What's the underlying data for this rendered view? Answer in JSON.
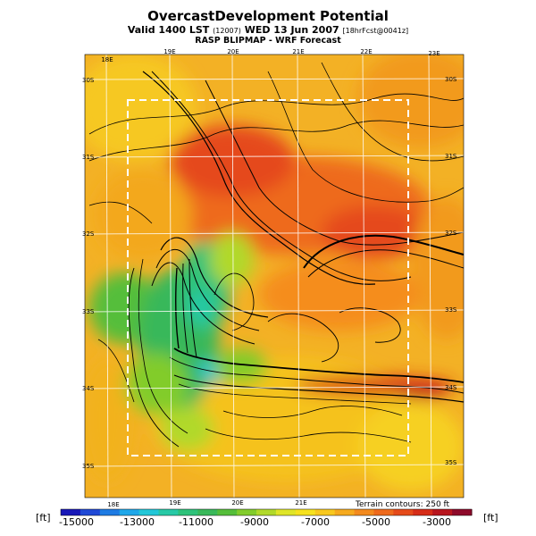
{
  "header": {
    "title": "OvercastDevelopment Potential",
    "line2_main": "Valid 1400 LST",
    "line2_small1": "(12007)",
    "line2_date": "WED 13 Jun 2007",
    "line2_small2": "[18hrFcst@0041z]",
    "line3": "RASP BLIPMAP - WRF Forecast"
  },
  "map": {
    "lon_labels_top": [
      "18E",
      "19E",
      "20E",
      "21E",
      "22E",
      "23E"
    ],
    "lon_labels_bottom": [
      "18E",
      "19E",
      "20E",
      "21E"
    ],
    "lat_labels_left": [
      "30S",
      "31S",
      "32S",
      "33S",
      "34S",
      "35S"
    ],
    "lat_labels_right": [
      "30S",
      "31S",
      "32S",
      "33S",
      "34S",
      "35S"
    ],
    "terrain_note": "Terrain contours: 250 ft"
  },
  "colorbar": {
    "unit_left": "[ft]",
    "unit_right": "[ft]",
    "tick_labels": [
      "-15000",
      "-13000",
      "-11000",
      "-9000",
      "-7000",
      "-5000",
      "-3000"
    ],
    "colors": [
      "#1818b8",
      "#1f49d6",
      "#1e7be3",
      "#1fa7e9",
      "#22c7d8",
      "#27c9a6",
      "#2ec27a",
      "#39b85a",
      "#55be3a",
      "#82cc2c",
      "#b1d92a",
      "#dfe528",
      "#f6e21f",
      "#f8c81e",
      "#f6aa1e",
      "#f38a1e",
      "#ee6a1c",
      "#e54a1a",
      "#d62d18",
      "#b8161e",
      "#8e0a2a"
    ]
  }
}
